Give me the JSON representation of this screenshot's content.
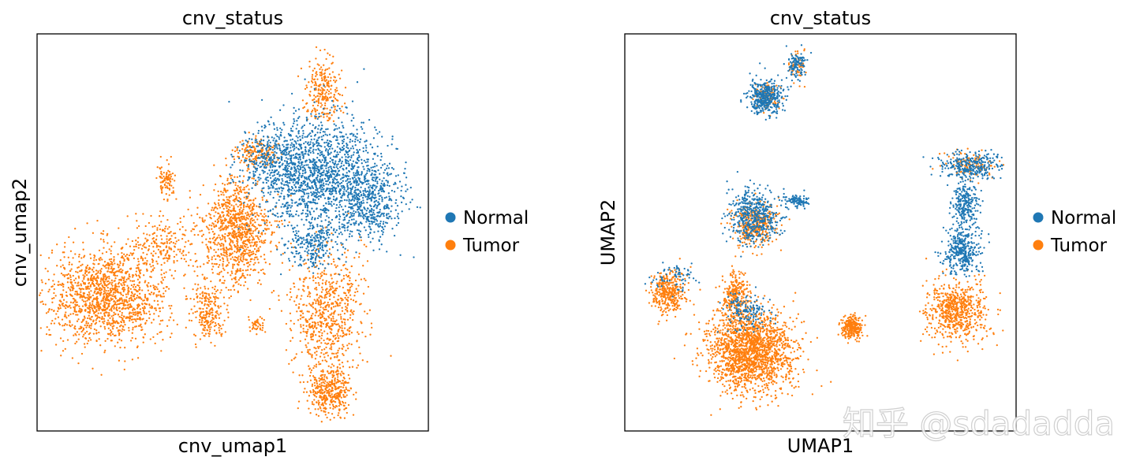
{
  "colors": {
    "normal": "#1f77b4",
    "tumor": "#ff7f0e"
  },
  "watermark": "知乎 @sdadadda",
  "chart_data": [
    {
      "type": "scatter",
      "title": "cnv_status",
      "xlabel": "cnv_umap1",
      "ylabel": "cnv_umap2",
      "grid": false,
      "ticks": false,
      "legend": {
        "position": "right",
        "entries": [
          "Normal",
          "Tumor"
        ]
      },
      "xlim": [
        0,
        100
      ],
      "ylim": [
        0,
        100
      ],
      "series": [
        {
          "name": "Normal",
          "clusters": [
            {
              "cx": 72,
              "cy": 64,
              "rx": 14,
              "ry": 14,
              "n": 1500
            },
            {
              "cx": 85,
              "cy": 58,
              "rx": 8,
              "ry": 9,
              "n": 450
            },
            {
              "cx": 60,
              "cy": 68,
              "rx": 8,
              "ry": 6,
              "n": 280
            },
            {
              "cx": 70,
              "cy": 47,
              "rx": 6,
              "ry": 5,
              "n": 200
            }
          ]
        },
        {
          "name": "Tumor",
          "clusters": [
            {
              "cx": 18,
              "cy": 34,
              "rx": 14,
              "ry": 11,
              "n": 1400
            },
            {
              "cx": 51,
              "cy": 50,
              "rx": 8,
              "ry": 12,
              "n": 1000
            },
            {
              "cx": 74,
              "cy": 30,
              "rx": 8,
              "ry": 15,
              "n": 700
            },
            {
              "cx": 75,
              "cy": 10,
              "rx": 5,
              "ry": 5,
              "n": 380
            },
            {
              "cx": 73,
              "cy": 86,
              "rx": 4,
              "ry": 7,
              "n": 250
            },
            {
              "cx": 44,
              "cy": 30,
              "rx": 4,
              "ry": 6,
              "n": 220
            },
            {
              "cx": 33,
              "cy": 63,
              "rx": 2,
              "ry": 4,
              "n": 90
            },
            {
              "cx": 32,
              "cy": 47,
              "rx": 8,
              "ry": 6,
              "n": 200
            },
            {
              "cx": 56,
              "cy": 70,
              "rx": 5,
              "ry": 3,
              "n": 150
            },
            {
              "cx": 56,
              "cy": 27,
              "rx": 2,
              "ry": 2,
              "n": 40
            }
          ]
        }
      ]
    },
    {
      "type": "scatter",
      "title": "cnv_status",
      "xlabel": "UMAP1",
      "ylabel": "UMAP2",
      "grid": false,
      "ticks": false,
      "legend": {
        "position": "right",
        "entries": [
          "Normal",
          "Tumor"
        ]
      },
      "xlim": [
        0,
        100
      ],
      "ylim": [
        0,
        100
      ],
      "series": [
        {
          "name": "Normal",
          "clusters": [
            {
              "cx": 36,
              "cy": 84,
              "rx": 4,
              "ry": 4,
              "n": 400
            },
            {
              "cx": 44,
              "cy": 92,
              "rx": 2,
              "ry": 3,
              "n": 120
            },
            {
              "cx": 33,
              "cy": 54,
              "rx": 6,
              "ry": 6,
              "n": 500
            },
            {
              "cx": 44,
              "cy": 58,
              "rx": 3,
              "ry": 1.5,
              "n": 100
            },
            {
              "cx": 88,
              "cy": 67,
              "rx": 7,
              "ry": 3,
              "n": 300
            },
            {
              "cx": 87,
              "cy": 57,
              "rx": 3,
              "ry": 5,
              "n": 250
            },
            {
              "cx": 86,
              "cy": 45,
              "rx": 4,
              "ry": 5,
              "n": 350
            },
            {
              "cx": 13,
              "cy": 39,
              "rx": 5,
              "ry": 3,
              "n": 70
            },
            {
              "cx": 31,
              "cy": 30,
              "rx": 6,
              "ry": 4,
              "n": 150
            }
          ]
        },
        {
          "name": "Tumor",
          "clusters": [
            {
              "cx": 32,
              "cy": 20,
              "rx": 10,
              "ry": 9,
              "n": 1800
            },
            {
              "cx": 28,
              "cy": 34,
              "rx": 3,
              "ry": 6,
              "n": 250
            },
            {
              "cx": 11,
              "cy": 35,
              "rx": 4,
              "ry": 5,
              "n": 350
            },
            {
              "cx": 33,
              "cy": 52,
              "rx": 5,
              "ry": 5,
              "n": 350
            },
            {
              "cx": 58,
              "cy": 26,
              "rx": 2.5,
              "ry": 2.5,
              "n": 260
            },
            {
              "cx": 85,
              "cy": 30,
              "rx": 7,
              "ry": 7,
              "n": 650
            },
            {
              "cx": 36,
              "cy": 84,
              "rx": 3,
              "ry": 3,
              "n": 90
            },
            {
              "cx": 44,
              "cy": 92,
              "rx": 2,
              "ry": 3,
              "n": 50
            },
            {
              "cx": 88,
              "cy": 67,
              "rx": 6,
              "ry": 3,
              "n": 120
            }
          ]
        }
      ]
    }
  ]
}
